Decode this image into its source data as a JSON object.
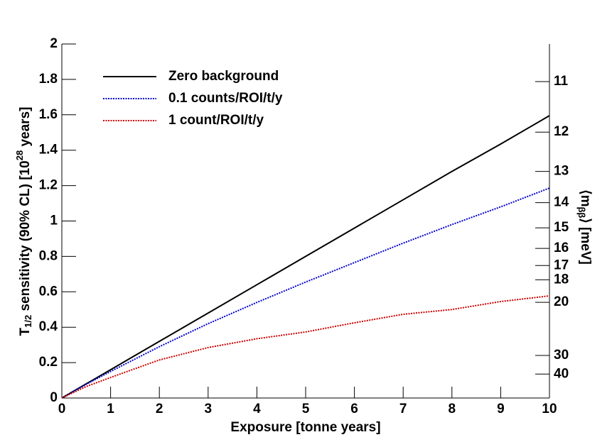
{
  "chart_data": {
    "type": "line",
    "x_label": "Exposure [tonne years]",
    "y_label": [
      "T",
      "1/2",
      " sensitivity (90% CL) [10",
      "28",
      " years]"
    ],
    "y2_label": [
      "⟨m",
      "ββ",
      "⟩ [meV]"
    ],
    "x": [
      0,
      0.5,
      1,
      2,
      3,
      4,
      5,
      6,
      7,
      8,
      9,
      10
    ],
    "series": [
      {
        "name": "Zero background",
        "color": "#000000",
        "dash": "solid",
        "values": [
          0,
          0.08,
          0.16,
          0.32,
          0.48,
          0.64,
          0.8,
          0.96,
          1.12,
          1.28,
          1.435,
          1.595
        ]
      },
      {
        "name": "0.1 counts/ROI/t/y",
        "color": "#0000cc",
        "dash": "dotted",
        "values": [
          0,
          0.078,
          0.15,
          0.29,
          0.42,
          0.54,
          0.655,
          0.765,
          0.875,
          0.98,
          1.08,
          1.186
        ]
      },
      {
        "name": "1 count/ROI/t/y",
        "color": "#cc0000",
        "dash": "dotted",
        "values": [
          0,
          0.065,
          0.116,
          0.215,
          0.285,
          0.335,
          0.373,
          0.425,
          0.473,
          0.5,
          0.545,
          0.577
        ]
      }
    ],
    "xlim": [
      0,
      10
    ],
    "xticks": [
      0,
      1,
      2,
      3,
      4,
      5,
      6,
      7,
      8,
      9,
      10
    ],
    "ylim": [
      0,
      2
    ],
    "yticks": [
      0,
      0.2,
      0.4,
      0.6,
      0.8,
      1,
      1.2,
      1.4,
      1.6,
      1.8,
      2
    ],
    "y2scale": "inverse-square",
    "y2lim": [
      null,
      10.4
    ],
    "y2ticks": [
      11,
      12,
      13,
      14,
      15,
      16,
      17,
      18,
      20,
      30,
      40
    ],
    "legend": "upper left",
    "grid": false
  }
}
